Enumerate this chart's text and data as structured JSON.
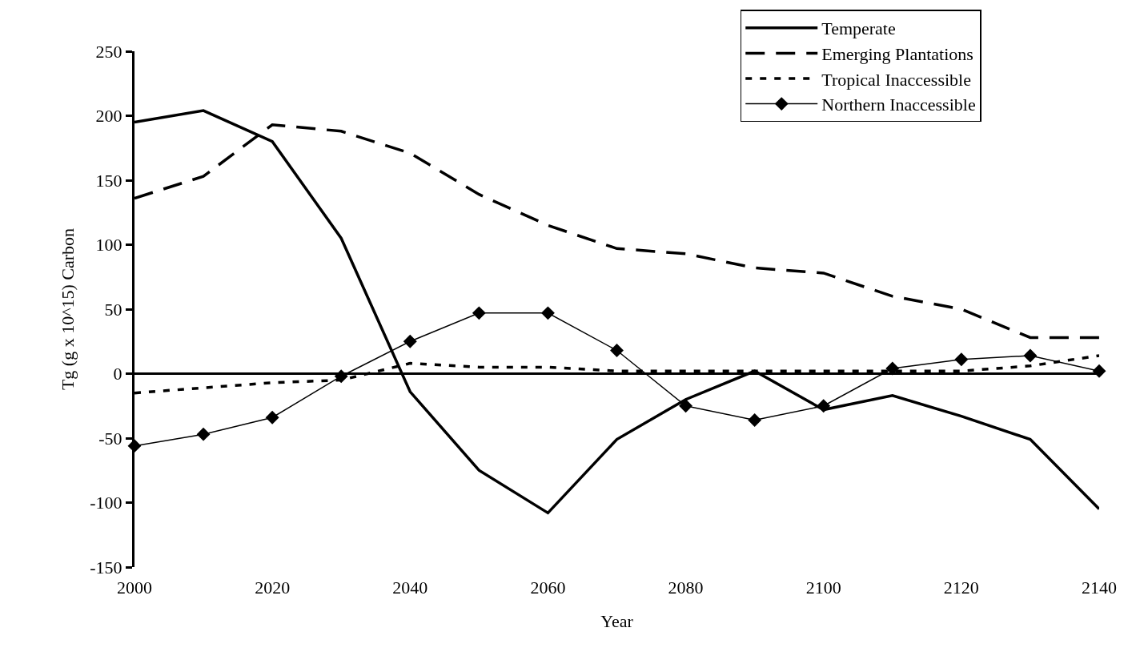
{
  "chart_data": {
    "type": "line",
    "xlabel": "Year",
    "ylabel": "Tg (g x 10^15) Carbon",
    "x": [
      2000,
      2010,
      2020,
      2030,
      2040,
      2050,
      2060,
      2070,
      2080,
      2090,
      2100,
      2110,
      2120,
      2130,
      2140
    ],
    "series": [
      {
        "name": "Temperate",
        "color": "#000000",
        "line_style": "solid",
        "marker": "none",
        "values": [
          195,
          204,
          180,
          105,
          -14,
          -75,
          -108,
          -51,
          -20,
          2,
          -28,
          -17,
          -33,
          -51,
          -105
        ]
      },
      {
        "name": "Emerging Plantations",
        "color": "#000000",
        "line_style": "dashed",
        "marker": "none",
        "values": [
          136,
          153,
          193,
          188,
          171,
          139,
          115,
          97,
          93,
          82,
          78,
          60,
          50,
          28,
          28
        ]
      },
      {
        "name": "Tropical Inaccessible",
        "color": "#000000",
        "line_style": "dotted",
        "marker": "none",
        "values": [
          -15,
          -11,
          -7,
          -5,
          8,
          5,
          5,
          2,
          2,
          2,
          2,
          2,
          2,
          6,
          14
        ]
      },
      {
        "name": "Northern Inaccessible",
        "color": "#000000",
        "line_style": "solid",
        "marker": "diamond",
        "values": [
          -56,
          -47,
          -34,
          -2,
          25,
          47,
          47,
          18,
          -25,
          -36,
          -25,
          4,
          11,
          14,
          2
        ]
      }
    ],
    "xlim": [
      2000,
      2140
    ],
    "xticks": [
      2000,
      2020,
      2040,
      2060,
      2080,
      2100,
      2120,
      2140
    ],
    "ylim": [
      -150,
      250
    ],
    "yticks": [
      -150,
      -100,
      -50,
      0,
      50,
      100,
      150,
      200,
      250
    ],
    "ref_lines": [
      {
        "axis": "y",
        "value": 0,
        "color": "#000000",
        "line_style": "solid"
      }
    ],
    "grid": false,
    "legend": "top right"
  }
}
